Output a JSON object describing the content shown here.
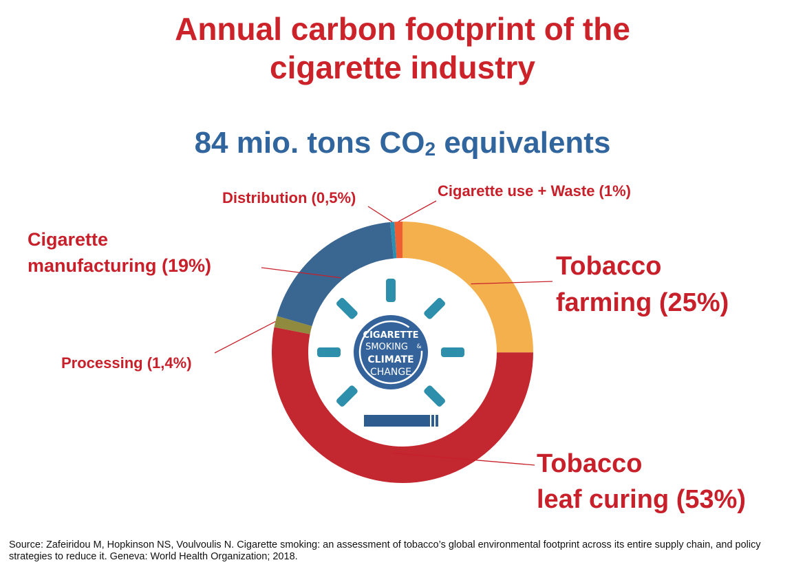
{
  "title_lines": [
    "Annual carbon footprint of the",
    "cigarette industry"
  ],
  "subtitle": {
    "main": "84 mio. tons CO",
    "subscript": "2",
    "suffix": " equivalents"
  },
  "center_badge": {
    "line1": "CIGARETTE",
    "line2": "SMOKING",
    "amp": "&",
    "line3": "CLIMATE",
    "line4": "CHANGE"
  },
  "chart_data": {
    "type": "pie",
    "style": "donut",
    "title": "Annual carbon footprint of the cigarette industry",
    "subtitle": "84 mio. tons CO2 equivalents",
    "slices": [
      {
        "label_lines": [
          "Tobacco",
          "farming (25%)"
        ],
        "value": 25,
        "color": "#f3b04d"
      },
      {
        "label_lines": [
          "Tobacco",
          "leaf curing (53%)"
        ],
        "value": 53,
        "color": "#c3272f"
      },
      {
        "label_lines": [
          "Processing (1,4%)"
        ],
        "value": 1.4,
        "color": "#8f8a3e"
      },
      {
        "label_lines": [
          "Cigarette",
          "manufacturing (19%)"
        ],
        "value": 19,
        "color": "#3a6692"
      },
      {
        "label_lines": [
          "Distribution (0,5%)"
        ],
        "value": 0.5,
        "color": "#2a8fb0"
      },
      {
        "label_lines": [
          "Cigarette use + Waste (1%)"
        ],
        "value": 1,
        "color": "#ef5d33"
      }
    ]
  },
  "source": "Source: Zafeiridou M, Hopkinson NS, Voulvoulis N. Cigarette smoking: an assessment of tobacco’s global environmental footprint across its entire supply chain, and policy strategies to reduce it. Geneva: World Health Organization; 2018.",
  "colors": {
    "title": "#cc2229",
    "subtitle": "#31659d",
    "label": "#c8202a",
    "icon_teal": "#2e8fad",
    "badge": "#34629a",
    "bar": "#2f5c8f"
  }
}
